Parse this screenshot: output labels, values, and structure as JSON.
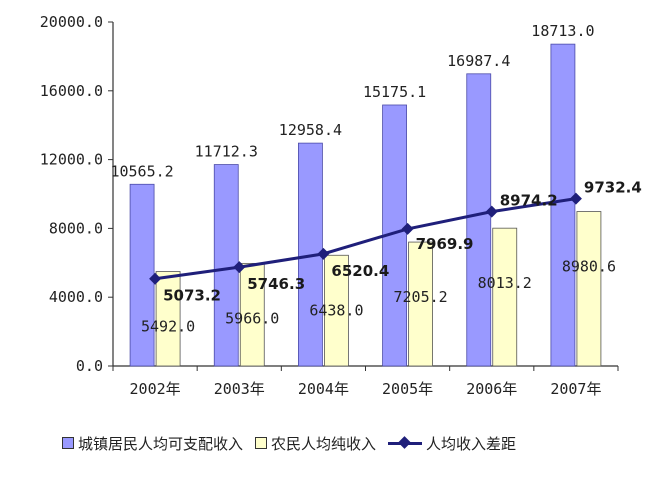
{
  "chart_data": {
    "type": "bar",
    "categories": [
      "2002年",
      "2003年",
      "2004年",
      "2005年",
      "2006年",
      "2007年"
    ],
    "y_ticks": [
      "0.0",
      "4000.0",
      "8000.0",
      "12000.0",
      "16000.0",
      "20000.0"
    ],
    "ylim": [
      0,
      20000
    ],
    "grid": false,
    "legend_position": "bottom",
    "series": [
      {
        "name": "城镇居民人均可支配收入",
        "type": "bar",
        "color": "#9999ff",
        "values": [
          10565.2,
          11712.3,
          12958.4,
          15175.1,
          16987.4,
          18713.0
        ],
        "labels": [
          "10565.2",
          "11712.3",
          "12958.4",
          "15175.1",
          "16987.4",
          "18713.0"
        ]
      },
      {
        "name": "农民人均纯收入",
        "type": "bar",
        "color": "#ffffcc",
        "values": [
          5492.0,
          5966.0,
          6438.0,
          7205.2,
          8013.2,
          8980.6
        ],
        "labels": [
          "5492.0",
          "5966.0",
          "6438.0",
          "7205.2",
          "8013.2",
          "8980.6"
        ]
      },
      {
        "name": "人均收入差距",
        "type": "line",
        "color": "#1f1f7a",
        "values": [
          5073.2,
          5746.3,
          6520.4,
          7969.9,
          8974.2,
          9732.4
        ],
        "labels": [
          "5073.2",
          "5746.3",
          "6520.4",
          "7969.9",
          "8974.2",
          "9732.4"
        ]
      }
    ]
  }
}
